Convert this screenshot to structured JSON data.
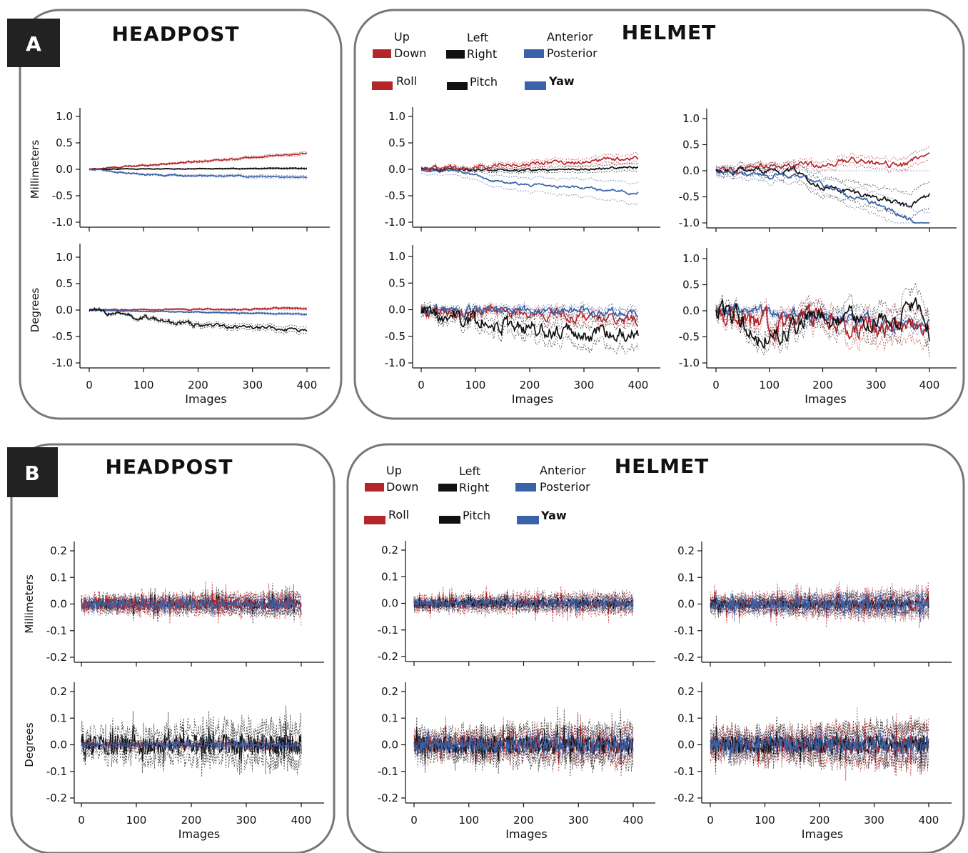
{
  "colors": {
    "red": "#b5262b",
    "black": "#111111",
    "blue": "#3a62a8",
    "frame": "#777777"
  },
  "panels": [
    {
      "label": "A",
      "headpost_title": "HEADPOST",
      "helmet_title": "HELMET",
      "legend": {
        "translation": [
          {
            "top": "Up",
            "bottom": "Down",
            "color": "red"
          },
          {
            "top": "Left",
            "bottom": "Right",
            "color": "black"
          },
          {
            "top": "Anterior",
            "bottom": "Posterior",
            "color": "blue"
          }
        ],
        "rotation": [
          {
            "label": "Roll",
            "color": "red"
          },
          {
            "label": "Pitch",
            "color": "black"
          },
          {
            "label": "Yaw",
            "color": "blue",
            "bold": true
          }
        ]
      }
    },
    {
      "label": "B",
      "headpost_title": "HEADPOST",
      "helmet_title": "HELMET",
      "legend": {
        "translation": [
          {
            "top": "Up",
            "bottom": "Down",
            "color": "red"
          },
          {
            "top": "Left",
            "bottom": "Right",
            "color": "black"
          },
          {
            "top": "Anterior",
            "bottom": "Posterior",
            "color": "blue"
          }
        ],
        "rotation": [
          {
            "label": "Roll",
            "color": "red"
          },
          {
            "label": "Pitch",
            "color": "black"
          },
          {
            "label": "Yaw",
            "color": "blue",
            "bold": true
          }
        ]
      }
    }
  ],
  "chart_data": [
    {
      "id": "A-headpost-mm",
      "type": "line",
      "panel": "A",
      "ylabel": "Millimeters",
      "xlabel": "",
      "ylim": [
        -1.0,
        1.0
      ],
      "yticks": [
        "1.0",
        "0.5",
        "0.0",
        "-0.5",
        "-1.0"
      ],
      "xlim": [
        0,
        400
      ],
      "xticks": [],
      "series": [
        {
          "color": "red",
          "trend": [
            [
              0,
              0
            ],
            [
              400,
              0.3
            ]
          ],
          "noise": 0.01,
          "band": 0.03
        },
        {
          "color": "black",
          "trend": [
            [
              0,
              0
            ],
            [
              400,
              0.02
            ]
          ],
          "noise": 0.005,
          "band": 0.015
        },
        {
          "color": "blue",
          "trend": [
            [
              0,
              0
            ],
            [
              100,
              -0.1
            ],
            [
              400,
              -0.15
            ]
          ],
          "noise": 0.01,
          "band": 0.03
        }
      ]
    },
    {
      "id": "A-headpost-deg",
      "type": "line",
      "panel": "A",
      "ylabel": "Degrees",
      "xlabel": "Images",
      "ylim": [
        -1.0,
        1.0
      ],
      "yticks": [
        "1.0",
        "0.5",
        "0.0",
        "-0.5",
        "-1.0"
      ],
      "xlim": [
        0,
        400
      ],
      "xticks": [
        "0",
        "100",
        "200",
        "300",
        "400"
      ],
      "series": [
        {
          "color": "red",
          "trend": [
            [
              0,
              0
            ],
            [
              400,
              0.03
            ]
          ],
          "noise": 0.01,
          "band": 0.02
        },
        {
          "color": "blue",
          "trend": [
            [
              0,
              0
            ],
            [
              400,
              -0.08
            ]
          ],
          "noise": 0.005,
          "band": 0.02
        },
        {
          "color": "black",
          "trend": [
            [
              0,
              0
            ],
            [
              100,
              -0.15
            ],
            [
              200,
              -0.28
            ],
            [
              300,
              -0.33
            ],
            [
              400,
              -0.38
            ]
          ],
          "noise": 0.03,
          "band": 0.06
        }
      ]
    },
    {
      "id": "A-helmet1-mm",
      "type": "line",
      "panel": "A",
      "ylabel": "",
      "xlabel": "",
      "ylim": [
        -1.0,
        1.0
      ],
      "yticks": [
        "1.0",
        "0.5",
        "0.0",
        "-0.5",
        "-1.0"
      ],
      "xlim": [
        0,
        400
      ],
      "xticks": [],
      "series": [
        {
          "color": "black",
          "trend": [
            [
              0,
              0
            ],
            [
              200,
              -0.02
            ],
            [
              400,
              0.04
            ]
          ],
          "noise": 0.02,
          "band": 0.07
        },
        {
          "color": "red",
          "trend": [
            [
              0,
              0
            ],
            [
              200,
              0.1
            ],
            [
              400,
              0.2
            ]
          ],
          "noise": 0.03,
          "band": 0.08
        },
        {
          "color": "blue",
          "trend": [
            [
              0,
              0
            ],
            [
              80,
              -0.05
            ],
            [
              120,
              -0.2
            ],
            [
              200,
              -0.3
            ],
            [
              300,
              -0.35
            ],
            [
              400,
              -0.45
            ]
          ],
          "noise": 0.02,
          "band": 0.2
        }
      ]
    },
    {
      "id": "A-helmet2-mm",
      "type": "line",
      "panel": "A",
      "ylabel": "",
      "xlabel": "",
      "ylim": [
        -1.0,
        1.0
      ],
      "yticks": [
        "1.0",
        "0.5",
        "0.0",
        "-0.5",
        "-1.0"
      ],
      "xlim": [
        0,
        400
      ],
      "xticks": [],
      "series": [
        {
          "color": "red",
          "trend": [
            [
              0,
              0
            ],
            [
              100,
              0.1
            ],
            [
              200,
              0.1
            ],
            [
              250,
              0.2
            ],
            [
              350,
              0.1
            ],
            [
              400,
              0.4
            ]
          ],
          "noise": 0.04,
          "band": 0.12
        },
        {
          "color": "black",
          "trend": [
            [
              0,
              0
            ],
            [
              150,
              0
            ],
            [
              200,
              -0.3
            ],
            [
              300,
              -0.5
            ],
            [
              360,
              -0.7
            ],
            [
              400,
              -0.45
            ]
          ],
          "noise": 0.04,
          "band": 0.25
        },
        {
          "color": "blue",
          "trend": [
            [
              0,
              0
            ],
            [
              100,
              -0.1
            ],
            [
              150,
              -0.1
            ],
            [
              200,
              -0.3
            ],
            [
              250,
              -0.5
            ],
            [
              300,
              -0.6
            ],
            [
              380,
              -1.0
            ]
          ],
          "noise": 0.04,
          "band": 0.25
        }
      ]
    },
    {
      "id": "A-helmet1-deg",
      "type": "line",
      "panel": "A",
      "ylabel": "",
      "xlabel": "Images",
      "ylim": [
        -1.0,
        1.0
      ],
      "yticks": [
        "1.0",
        "0.5",
        "0.0",
        "-0.5",
        "-1.0"
      ],
      "xlim": [
        0,
        400
      ],
      "xticks": [
        "0",
        "100",
        "200",
        "300",
        "400"
      ],
      "series": [
        {
          "color": "red",
          "trend": [
            [
              0,
              0
            ],
            [
              200,
              -0.05
            ],
            [
              400,
              -0.2
            ]
          ],
          "noise": 0.08,
          "band": 0.12
        },
        {
          "color": "blue",
          "trend": [
            [
              0,
              0
            ],
            [
              400,
              -0.05
            ]
          ],
          "noise": 0.06,
          "band": 0.1
        },
        {
          "color": "black",
          "trend": [
            [
              0,
              0
            ],
            [
              100,
              -0.2
            ],
            [
              200,
              -0.35
            ],
            [
              300,
              -0.45
            ],
            [
              400,
              -0.35
            ]
          ],
          "noise": 0.12,
          "band": 0.25
        }
      ]
    },
    {
      "id": "A-helmet2-deg",
      "type": "line",
      "panel": "A",
      "ylabel": "",
      "xlabel": "Images",
      "ylim": [
        -1.0,
        1.0
      ],
      "yticks": [
        "1.0",
        "0.5",
        "0.0",
        "-0.5",
        "-1.0"
      ],
      "xlim": [
        0,
        400
      ],
      "xticks": [
        "0",
        "100",
        "200",
        "300",
        "400"
      ],
      "series": [
        {
          "color": "blue",
          "trend": [
            [
              0,
              0
            ],
            [
              200,
              -0.1
            ],
            [
              400,
              -0.3
            ]
          ],
          "noise": 0.08,
          "band": 0.12
        },
        {
          "color": "red",
          "trend": [
            [
              0,
              0
            ],
            [
              100,
              -0.3
            ],
            [
              200,
              -0.1
            ],
            [
              300,
              -0.4
            ],
            [
              400,
              -0.2
            ]
          ],
          "noise": 0.15,
          "band": 0.3
        },
        {
          "color": "black",
          "trend": [
            [
              0,
              0.1
            ],
            [
              100,
              -0.5
            ],
            [
              200,
              -0.1
            ],
            [
              300,
              -0.2
            ],
            [
              380,
              0.1
            ],
            [
              400,
              -0.4
            ]
          ],
          "noise": 0.15,
          "band": 0.3
        }
      ]
    },
    {
      "id": "B-headpost-mm",
      "type": "line",
      "panel": "B",
      "ylabel": "Millimeters",
      "xlabel": "",
      "ylim": [
        -0.2,
        0.2
      ],
      "yticks": [
        "0.2",
        "0.1",
        "0.0",
        "-0.1",
        "-0.2"
      ],
      "xlim": [
        0,
        400
      ],
      "xticks": [],
      "series": [
        {
          "color": "black",
          "trend": [
            [
              0,
              0
            ],
            [
              400,
              0
            ]
          ],
          "noise": 0.02,
          "band": 0.02
        },
        {
          "color": "red",
          "trend": [
            [
              0,
              0
            ],
            [
              400,
              0
            ]
          ],
          "noise": 0.025,
          "band": 0.02
        },
        {
          "color": "blue",
          "trend": [
            [
              0,
              0
            ],
            [
              400,
              0
            ]
          ],
          "noise": 0.015,
          "band": 0.015
        }
      ]
    },
    {
      "id": "B-headpost-deg",
      "type": "line",
      "panel": "B",
      "ylabel": "Degrees",
      "xlabel": "Images",
      "ylim": [
        -0.2,
        0.2
      ],
      "yticks": [
        "0.2",
        "0.1",
        "0.0",
        "-0.1",
        "-0.2"
      ],
      "xlim": [
        0,
        400
      ],
      "xticks": [
        "0",
        "100",
        "200",
        "300",
        "400"
      ],
      "series": [
        {
          "color": "red",
          "trend": [
            [
              0,
              0
            ],
            [
              400,
              0
            ]
          ],
          "noise": 0.01,
          "band": 0.01
        },
        {
          "color": "black",
          "trend": [
            [
              0,
              0
            ],
            [
              400,
              0
            ]
          ],
          "noise": 0.04,
          "band": 0.04
        },
        {
          "color": "blue",
          "trend": [
            [
              0,
              0
            ],
            [
              400,
              0
            ]
          ],
          "noise": 0.008,
          "band": 0.01
        }
      ]
    },
    {
      "id": "B-helmet1-mm",
      "type": "line",
      "panel": "B",
      "ylabel": "",
      "xlabel": "",
      "ylim": [
        -0.2,
        0.2
      ],
      "yticks": [
        "0.2",
        "0.1",
        "0.0",
        "-0.1",
        "-0.2"
      ],
      "xlim": [
        0,
        400
      ],
      "xticks": [],
      "series": [
        {
          "color": "red",
          "trend": [
            [
              0,
              0
            ],
            [
              400,
              0
            ]
          ],
          "noise": 0.02,
          "band": 0.02
        },
        {
          "color": "black",
          "trend": [
            [
              0,
              0
            ],
            [
              400,
              0
            ]
          ],
          "noise": 0.015,
          "band": 0.015
        },
        {
          "color": "blue",
          "trend": [
            [
              0,
              0
            ],
            [
              400,
              0
            ]
          ],
          "noise": 0.012,
          "band": 0.012
        }
      ]
    },
    {
      "id": "B-helmet2-mm",
      "type": "line",
      "panel": "B",
      "ylabel": "",
      "xlabel": "",
      "ylim": [
        -0.2,
        0.2
      ],
      "yticks": [
        "0.2",
        "0.1",
        "0.0",
        "-0.1",
        "-0.2"
      ],
      "xlim": [
        0,
        400
      ],
      "xticks": [],
      "series": [
        {
          "color": "red",
          "trend": [
            [
              0,
              0
            ],
            [
              400,
              0
            ]
          ],
          "noise": 0.025,
          "band": 0.025
        },
        {
          "color": "black",
          "trend": [
            [
              0,
              0
            ],
            [
              400,
              0
            ]
          ],
          "noise": 0.015,
          "band": 0.02
        },
        {
          "color": "blue",
          "trend": [
            [
              0,
              0
            ],
            [
              400,
              0
            ]
          ],
          "noise": 0.02,
          "band": 0.02
        }
      ]
    },
    {
      "id": "B-helmet1-deg",
      "type": "line",
      "panel": "B",
      "ylabel": "",
      "xlabel": "Images",
      "ylim": [
        -0.2,
        0.2
      ],
      "yticks": [
        "0.2",
        "0.1",
        "0.0",
        "-0.1",
        "-0.2"
      ],
      "xlim": [
        0,
        400
      ],
      "xticks": [
        "0",
        "100",
        "200",
        "300",
        "400"
      ],
      "series": [
        {
          "color": "red",
          "trend": [
            [
              0,
              0
            ],
            [
              400,
              0
            ]
          ],
          "noise": 0.035,
          "band": 0.03
        },
        {
          "color": "black",
          "trend": [
            [
              0,
              0
            ],
            [
              400,
              0
            ]
          ],
          "noise": 0.035,
          "band": 0.04
        },
        {
          "color": "blue",
          "trend": [
            [
              0,
              0
            ],
            [
              400,
              0
            ]
          ],
          "noise": 0.025,
          "band": 0.02
        }
      ]
    },
    {
      "id": "B-helmet2-deg",
      "type": "line",
      "panel": "B",
      "ylabel": "",
      "xlabel": "Images",
      "ylim": [
        -0.2,
        0.2
      ],
      "yticks": [
        "0.2",
        "0.1",
        "0.0",
        "-0.1",
        "-0.2"
      ],
      "xlim": [
        0,
        400
      ],
      "xticks": [
        "0",
        "100",
        "200",
        "300",
        "400"
      ],
      "series": [
        {
          "color": "red",
          "trend": [
            [
              0,
              0
            ],
            [
              400,
              0
            ]
          ],
          "noise": 0.035,
          "band": 0.04
        },
        {
          "color": "black",
          "trend": [
            [
              0,
              0
            ],
            [
              400,
              0
            ]
          ],
          "noise": 0.035,
          "band": 0.04
        },
        {
          "color": "blue",
          "trend": [
            [
              0,
              0
            ],
            [
              400,
              0
            ]
          ],
          "noise": 0.025,
          "band": 0.02
        }
      ]
    }
  ]
}
